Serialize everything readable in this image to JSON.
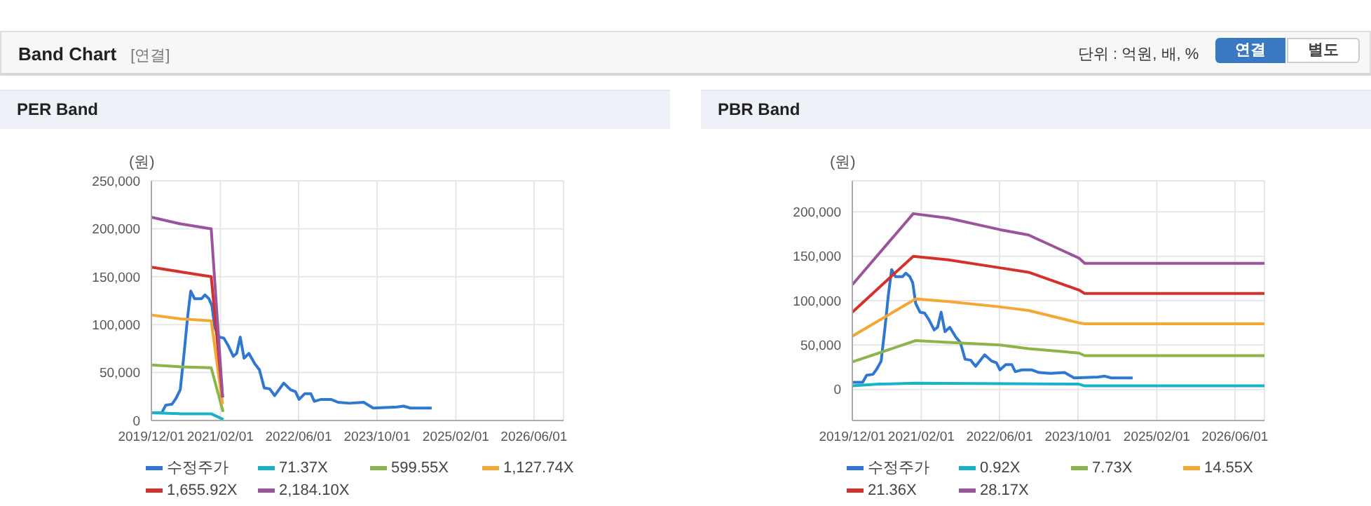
{
  "chart_data": [
    {
      "type": "line",
      "title": "PER Band",
      "ylabel": "(원)",
      "annotations": [
        "Band Chart",
        "[연결]",
        "단위 : 억원, 배, %",
        "연결",
        "별도"
      ],
      "grid": true,
      "legend": "bottom",
      "marker": "none",
      "line_style": "solid",
      "xlim": [
        "2019-12-01",
        "2026-12-01"
      ],
      "xticks": [
        {
          "value": "2019-12-01",
          "label": "2019/12/01"
        },
        {
          "value": "2021-02-01",
          "label": "2021/02/01"
        },
        {
          "value": "2022-06-01",
          "label": "2022/06/01"
        },
        {
          "value": "2023-10-01",
          "label": "2023/10/01"
        },
        {
          "value": "2025-02-01",
          "label": "2025/02/01"
        },
        {
          "value": "2026-06-01",
          "label": "2026/06/01"
        }
      ],
      "ylim": [
        0,
        250000
      ],
      "yticks": [
        {
          "value": 0,
          "label": "0"
        },
        {
          "value": 50000,
          "label": "50,000"
        },
        {
          "value": 100000,
          "label": "100,000"
        },
        {
          "value": 150000,
          "label": "150,000"
        },
        {
          "value": 200000,
          "label": "200,000"
        },
        {
          "value": 250000,
          "label": "250,000"
        }
      ],
      "series": [
        {
          "name": "수정주가",
          "color": "#2f77d0",
          "x": [
            "2019-12-01",
            "2020-02-03",
            "2020-02-28",
            "2020-04-07",
            "2020-05-01",
            "2020-05-28",
            "2020-06-22",
            "2020-07-12",
            "2020-08-01",
            "2020-08-25",
            "2020-10-07",
            "2020-10-28",
            "2020-11-22",
            "2020-12-10",
            "2020-12-28",
            "2021-01-24",
            "2021-02-22",
            "2021-03-22",
            "2021-04-22",
            "2021-05-13",
            "2021-06-04",
            "2021-06-28",
            "2021-07-28",
            "2021-09-03",
            "2021-10-01",
            "2021-10-31",
            "2021-12-04",
            "2022-01-04",
            "2022-03-01",
            "2022-04-13",
            "2022-05-13",
            "2022-06-04",
            "2022-07-10",
            "2022-08-16",
            "2022-09-07",
            "2022-10-19",
            "2022-12-19",
            "2023-02-01",
            "2023-04-13",
            "2023-07-10",
            "2023-09-07",
            "2024-02-01",
            "2024-03-13",
            "2024-04-25",
            "2024-09-04"
          ],
          "values": [
            8000,
            8000,
            16000,
            17000,
            23000,
            32000,
            72000,
            107000,
            135000,
            127000,
            127000,
            131000,
            127000,
            120000,
            97000,
            87000,
            86000,
            78000,
            67000,
            70000,
            87000,
            65000,
            70000,
            59000,
            53000,
            34000,
            33000,
            26000,
            39000,
            32000,
            30000,
            22000,
            28000,
            28000,
            20000,
            22000,
            22000,
            19000,
            18000,
            19000,
            13000,
            14000,
            15000,
            13000,
            13000
          ]
        },
        {
          "name": "71.37X",
          "color": "#17b3c7",
          "x": [
            "2019-12-01",
            "2020-06-01",
            "2020-12-06",
            "2021-02-20"
          ],
          "values": [
            8000,
            7000,
            7000,
            1000
          ]
        },
        {
          "name": "599.55X",
          "color": "#8bb44a",
          "x": [
            "2019-12-01",
            "2020-06-01",
            "2020-12-06",
            "2021-02-18"
          ],
          "values": [
            58000,
            56000,
            55000,
            9000
          ]
        },
        {
          "name": "1,127.74X",
          "color": "#f5a733",
          "x": [
            "2019-12-01",
            "2020-06-01",
            "2020-12-06",
            "2021-02-15"
          ],
          "values": [
            110000,
            106000,
            104000,
            17000
          ]
        },
        {
          "name": "1,655.92X",
          "color": "#d3322c",
          "x": [
            "2019-12-01",
            "2020-06-01",
            "2020-12-06",
            "2021-02-15"
          ],
          "values": [
            160000,
            155000,
            150000,
            24000
          ]
        },
        {
          "name": "2,184.10X",
          "color": "#9b549b",
          "x": [
            "2019-12-01",
            "2020-06-01",
            "2020-12-06",
            "2021-02-15"
          ],
          "values": [
            212000,
            205000,
            200000,
            24000
          ]
        }
      ]
    },
    {
      "type": "line",
      "title": "PBR Band",
      "ylabel": "(원)",
      "grid": true,
      "legend": "bottom",
      "marker": "none",
      "line_style": "solid",
      "xlim": [
        "2019-12-01",
        "2026-12-01"
      ],
      "xticks": [
        {
          "value": "2019-12-01",
          "label": "2019/12/01"
        },
        {
          "value": "2021-02-01",
          "label": "2021/02/01"
        },
        {
          "value": "2022-06-01",
          "label": "2022/06/01"
        },
        {
          "value": "2023-10-01",
          "label": "2023/10/01"
        },
        {
          "value": "2025-02-01",
          "label": "2025/02/01"
        },
        {
          "value": "2026-06-01",
          "label": "2026/06/01"
        }
      ],
      "ylim": [
        -35000,
        235000
      ],
      "yticks": [
        {
          "value": 0,
          "label": "0"
        },
        {
          "value": 50000,
          "label": "50,000"
        },
        {
          "value": 100000,
          "label": "100,000"
        },
        {
          "value": 150000,
          "label": "150,000"
        },
        {
          "value": 200000,
          "label": "200,000"
        }
      ],
      "series": [
        {
          "name": "수정주가",
          "color": "#2f77d0",
          "x": [
            "2019-12-01",
            "2020-02-03",
            "2020-02-28",
            "2020-04-07",
            "2020-05-01",
            "2020-05-28",
            "2020-06-22",
            "2020-07-12",
            "2020-08-01",
            "2020-08-25",
            "2020-10-07",
            "2020-10-28",
            "2020-11-22",
            "2020-12-10",
            "2020-12-28",
            "2021-01-24",
            "2021-02-22",
            "2021-03-22",
            "2021-04-22",
            "2021-05-13",
            "2021-06-04",
            "2021-06-28",
            "2021-07-28",
            "2021-09-03",
            "2021-10-01",
            "2021-10-31",
            "2021-12-04",
            "2022-01-04",
            "2022-03-01",
            "2022-04-13",
            "2022-05-13",
            "2022-06-04",
            "2022-07-10",
            "2022-08-16",
            "2022-09-07",
            "2022-10-19",
            "2022-12-19",
            "2023-02-01",
            "2023-04-13",
            "2023-07-10",
            "2023-09-07",
            "2024-02-01",
            "2024-03-13",
            "2024-04-25",
            "2024-09-04"
          ],
          "values": [
            8000,
            8000,
            16000,
            17000,
            23000,
            32000,
            72000,
            107000,
            135000,
            127000,
            127000,
            131000,
            127000,
            120000,
            97000,
            87000,
            86000,
            78000,
            67000,
            70000,
            87000,
            65000,
            70000,
            59000,
            53000,
            34000,
            33000,
            26000,
            39000,
            32000,
            30000,
            22000,
            28000,
            28000,
            20000,
            22000,
            22000,
            19000,
            18000,
            19000,
            13000,
            14000,
            15000,
            13000,
            13000
          ]
        },
        {
          "name": "0.92X",
          "color": "#17b3c7",
          "x": [
            "2019-12-01",
            "2020-05-15",
            "2020-12-28",
            "2023-10-07",
            "2023-11-12",
            "2026-12-01"
          ],
          "values": [
            4000,
            6000,
            7000,
            6000,
            4000,
            4000
          ]
        },
        {
          "name": "7.73X",
          "color": "#8bb44a",
          "x": [
            "2019-12-01",
            "2020-12-28",
            "2021-07-18",
            "2022-06-04",
            "2022-11-28",
            "2023-10-07",
            "2023-11-12",
            "2026-12-01"
          ],
          "values": [
            31000,
            55000,
            53000,
            50000,
            46000,
            41000,
            38000,
            38000
          ]
        },
        {
          "name": "14.55X",
          "color": "#f5a733",
          "x": [
            "2019-12-01",
            "2020-12-28",
            "2021-07-18",
            "2022-06-04",
            "2022-11-28",
            "2023-10-07",
            "2023-11-12",
            "2026-12-01"
          ],
          "values": [
            60000,
            102000,
            99000,
            93000,
            89000,
            75000,
            74000,
            74000
          ]
        },
        {
          "name": "21.36X",
          "color": "#d3322c",
          "x": [
            "2019-12-01",
            "2020-12-13",
            "2021-07-18",
            "2022-06-04",
            "2022-11-28",
            "2023-10-07",
            "2023-11-12",
            "2026-12-01"
          ],
          "values": [
            87000,
            150000,
            146000,
            137000,
            132000,
            112000,
            108000,
            108000
          ]
        },
        {
          "name": "28.17X",
          "color": "#9b549b",
          "x": [
            "2019-12-01",
            "2020-12-13",
            "2021-07-18",
            "2022-06-04",
            "2022-11-28",
            "2023-10-07",
            "2023-11-12",
            "2026-12-01"
          ],
          "values": [
            118000,
            198000,
            193000,
            180000,
            174000,
            148000,
            142000,
            142000
          ]
        }
      ]
    }
  ]
}
